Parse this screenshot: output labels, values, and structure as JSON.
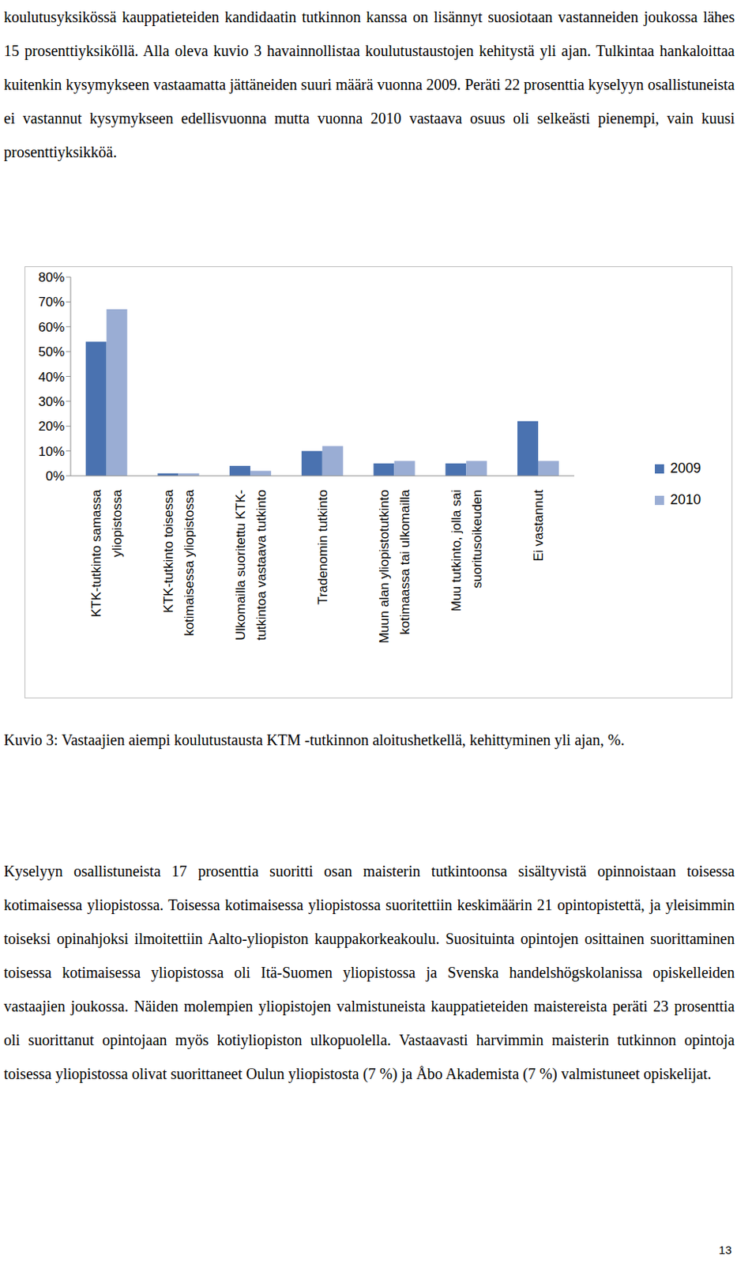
{
  "paragraphs_before": [
    "koulutusyksikössä kauppatieteiden kandidaatin tutkinnon kanssa on lisännyt suosiotaan vastanneiden joukossa lähes 15 prosenttiyksiköllä. Alla oleva kuvio 3 havainnollistaa koulutustaustojen kehitystä yli ajan. Tulkintaa hankaloittaa kuitenkin kysymykseen vastaamatta jättäneiden suuri määrä vuonna 2009. Peräti 22 prosenttia kyselyyn osallistuneista ei vastannut kysymykseen edellisvuonna mutta vuonna 2010 vastaava osuus oli selkeästi pienempi, vain kuusi prosenttiyksikköä."
  ],
  "chart_data": {
    "type": "bar",
    "categories": [
      "KTK-tutkinto samassa yliopistossa",
      "KTK-tutkinto toisessa kotimaisessa yliopistossa",
      "Ulkomailla suoritettu KTK-tutkintoa vastaava tutkinto",
      "Tradenomin tutkinto",
      "Muun alan yliopistotutkinto kotimaassa tai ulkomailla",
      "Muu tutkinto, jolla sai suoritusoikeuden",
      "Ei vastannut"
    ],
    "series": [
      {
        "name": "2009",
        "color": "#4a72b0",
        "values": [
          54,
          1,
          4,
          10,
          5,
          5,
          22
        ]
      },
      {
        "name": "2010",
        "color": "#9aadd4",
        "values": [
          67,
          1,
          2,
          12,
          6,
          6,
          6
        ]
      }
    ],
    "ylim": [
      0,
      80
    ],
    "yticks": [
      {
        "value": 0,
        "label": "0%"
      },
      {
        "value": 10,
        "label": "10%"
      },
      {
        "value": 20,
        "label": "20%"
      },
      {
        "value": 30,
        "label": "30%"
      },
      {
        "value": 40,
        "label": "40%"
      },
      {
        "value": 50,
        "label": "50%"
      },
      {
        "value": 60,
        "label": "60%"
      },
      {
        "value": 70,
        "label": "70%"
      },
      {
        "value": 80,
        "label": "80%"
      }
    ],
    "grid": false,
    "legend": "right"
  },
  "caption": "Kuvio 3: Vastaajien aiempi koulutustausta KTM -tutkinnon aloitushetkellä, kehittyminen yli ajan, %.",
  "paragraphs_after": [
    "Kyselyyn osallistuneista 17 prosenttia suoritti osan maisterin tutkintoonsa sisältyvistä opinnoistaan toisessa kotimaisessa yliopistossa. Toisessa kotimaisessa yliopistossa suoritettiin keskimäärin 21 opintopistettä, ja yleisimmin toiseksi opinahjoksi ilmoitettiin Aalto-yliopiston kauppakorkeakoulu. Suosituinta opintojen osittainen suorittaminen toisessa kotimaisessa yliopistossa oli Itä-Suomen yliopistossa ja Svenska handelshögskolanissa opiskelleiden vastaajien joukossa. Näiden molempien yliopistojen valmistuneista kauppatieteiden maistereista peräti 23 prosenttia oli suorittanut opintojaan myös kotiyliopiston ulkopuolella. Vastaavasti harvimmin maisterin tutkinnon opintoja toisessa yliopistossa olivat suorittaneet Oulun yliopistosta (7 %) ja Åbo Akademista (7 %) valmistuneet opiskelijat."
  ],
  "page_number": "13"
}
